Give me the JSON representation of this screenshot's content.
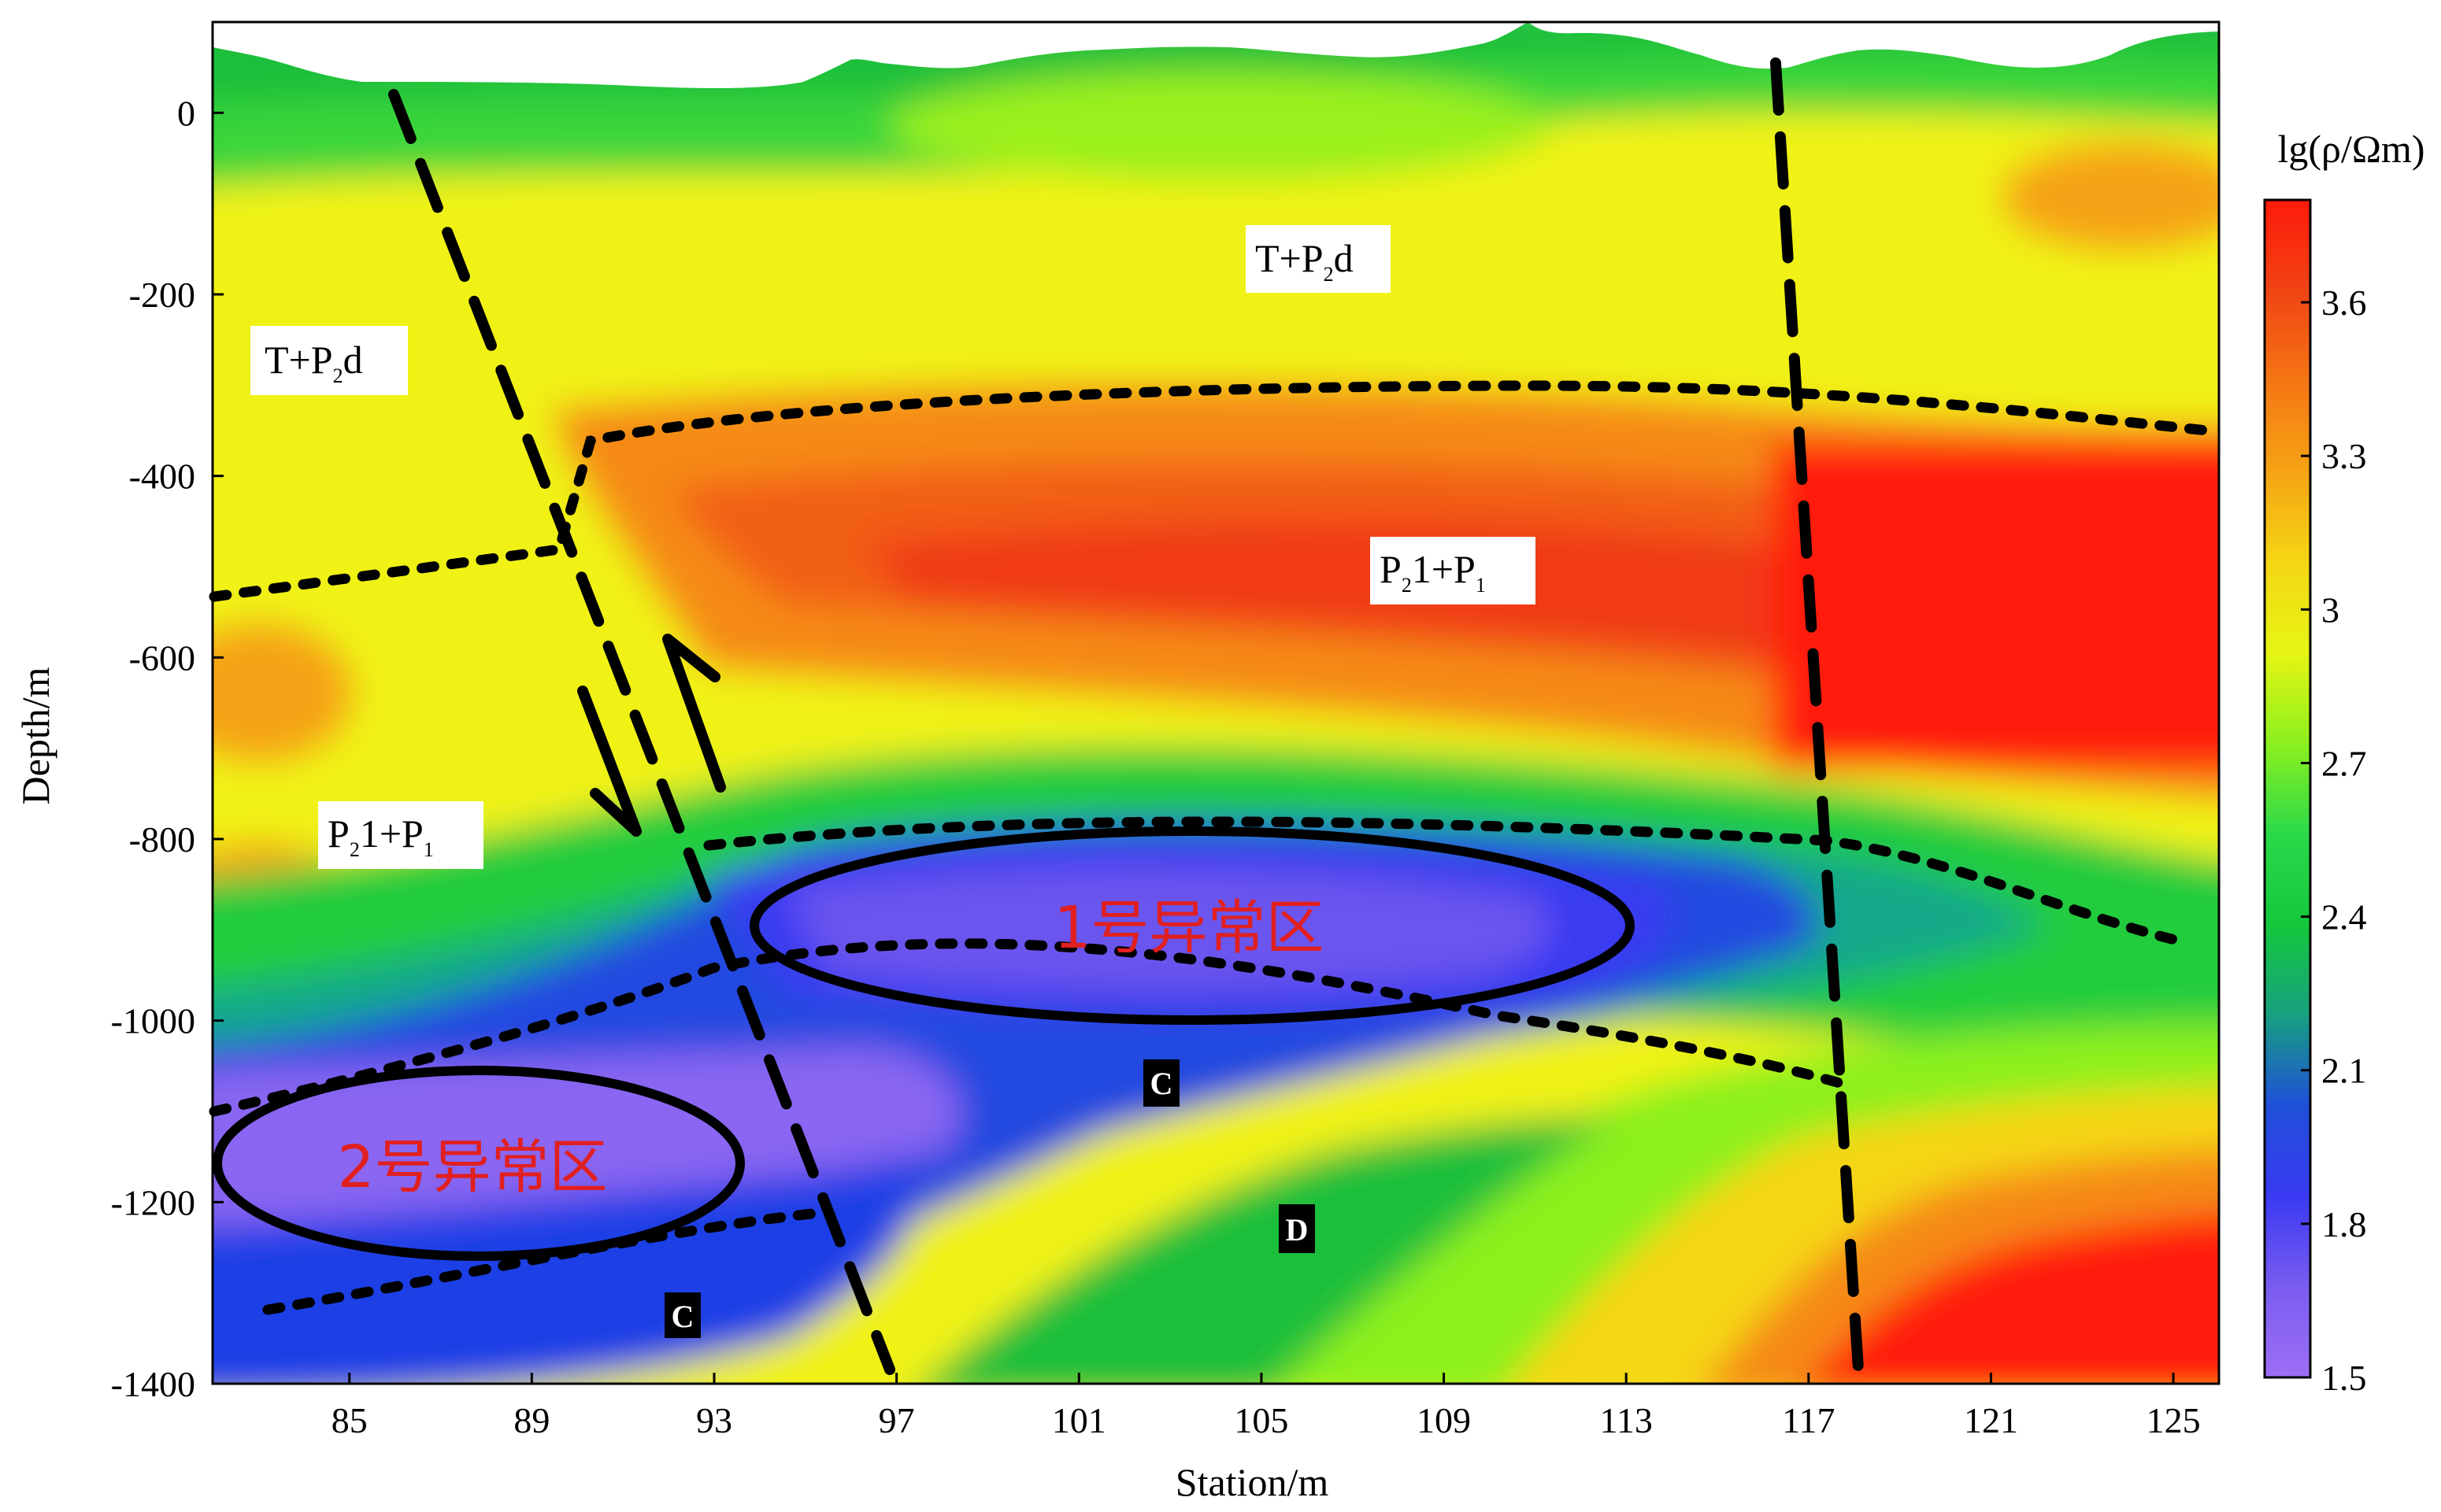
{
  "chart_data": {
    "type": "heatmap",
    "xlabel": "Station/m",
    "ylabel": "Depth/m",
    "x_ticks": [
      "85",
      "89",
      "93",
      "97",
      "101",
      "105",
      "109",
      "113",
      "117",
      "121",
      "125"
    ],
    "y_ticks": [
      "0",
      "-200",
      "-400",
      "-600",
      "-800",
      "-1000",
      "-1200",
      "-1400"
    ],
    "xlim": [
      82,
      126
    ],
    "ylim": [
      -1400,
      100
    ],
    "colorbar": {
      "title": "lg(ρ/Ωm)",
      "ticks": [
        "3.6",
        "3.3",
        "3",
        "2.7",
        "2.4",
        "2.1",
        "1.8",
        "1.5"
      ],
      "range": [
        1.5,
        3.8
      ],
      "colors": [
        "#9d6ff5",
        "#7a5cf0",
        "#3a3af2",
        "#1f4fd8",
        "#18a080",
        "#14c83c",
        "#2bd94a",
        "#8cf01e",
        "#e6f514",
        "#f5d614",
        "#f5a314",
        "#f57614",
        "#f04414",
        "#ff1a0a"
      ]
    },
    "annotations": {
      "strata_top_left": "T+P",
      "strata_top_left_sub": "2",
      "strata_top_left_tail": "d",
      "strata_top_center": "T+P",
      "strata_top_center_sub": "2",
      "strata_top_center_tail": "d",
      "strata_mid_center": "P",
      "strata_mid_center_sub": "2",
      "strata_mid_center_tail": "1+P",
      "strata_mid_center_sub2": "1",
      "strata_mid_left": "P",
      "strata_mid_left_sub": "2",
      "strata_mid_left_tail": "1+P",
      "strata_mid_left_sub2": "1",
      "anomaly_1": "1号异常区",
      "anomaly_2": "2号异常区",
      "label_c1": "C",
      "label_c2": "C",
      "label_d": "D"
    }
  }
}
